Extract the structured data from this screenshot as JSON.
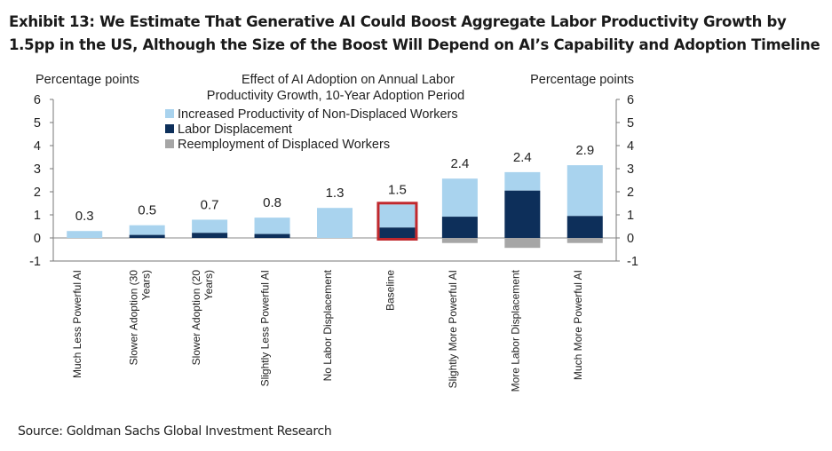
{
  "exhibit_title": "Exhibit 13: We Estimate That Generative AI Could Boost Aggregate Labor Productivity Growth by 1.5pp in the US, Although the Size of the Boost Will Depend on AI’s Capability and Adoption Timeline",
  "source": "Source: Goldman Sachs Global Investment Research",
  "chart_data": {
    "type": "bar",
    "stacked": true,
    "title_line1": "Effect of AI Adoption on Annual Labor",
    "title_line2": "Productivity Growth, 10-Year Adoption Period",
    "ylabel_left": "Percentage points",
    "ylabel_right": "Percentage points",
    "ylim": [
      -1,
      6
    ],
    "yticks": [
      "6",
      "5",
      "4",
      "3",
      "2",
      "1",
      "0",
      "-1"
    ],
    "ytick_values": [
      6,
      5,
      4,
      3,
      2,
      1,
      0,
      -1
    ],
    "legend_position": "top-center",
    "highlighted_category": "Baseline",
    "highlight_color": "#c0282d",
    "categories": [
      "Much Less Powerful AI",
      "Slower Adoption (30 Years)",
      "Slower Adoption (20 Years)",
      "Slightly Less Powerful AI",
      "No Labor Displacement",
      "Baseline",
      "Slightly More Powerful AI",
      "More Labor Displacement",
      "Much More Powerful AI"
    ],
    "category_lines": [
      [
        "Much Less Powerful AI"
      ],
      [
        "Slower Adoption (30",
        "Years)"
      ],
      [
        "Slower Adoption (20",
        "Years)"
      ],
      [
        "Slightly Less Powerful AI"
      ],
      [
        "No Labor Displacement"
      ],
      [
        "Baseline"
      ],
      [
        "Slightly More Powerful AI"
      ],
      [
        "More Labor Displacement"
      ],
      [
        "Much More Powerful AI"
      ]
    ],
    "totals": [
      "0.3",
      "0.5",
      "0.7",
      "0.8",
      "1.3",
      "1.5",
      "2.4",
      "2.4",
      "2.9"
    ],
    "series": [
      {
        "name": "Increased Productivity of Non-Displaced Workers",
        "color": "#a9d3ee",
        "values": [
          0.3,
          0.42,
          0.57,
          0.71,
          1.3,
          1.0,
          1.65,
          0.8,
          2.2
        ]
      },
      {
        "name": "Labor Displacement",
        "color": "#0d2f5a",
        "values": [
          0.0,
          0.13,
          0.22,
          0.17,
          0.0,
          0.45,
          0.92,
          2.05,
          0.95
        ]
      },
      {
        "name": "Reemployment of Displaced Workers",
        "color": "#a6a6a6",
        "values": [
          0.0,
          0.0,
          0.0,
          0.0,
          0.0,
          0.0,
          -0.22,
          -0.43,
          -0.22
        ]
      }
    ]
  }
}
